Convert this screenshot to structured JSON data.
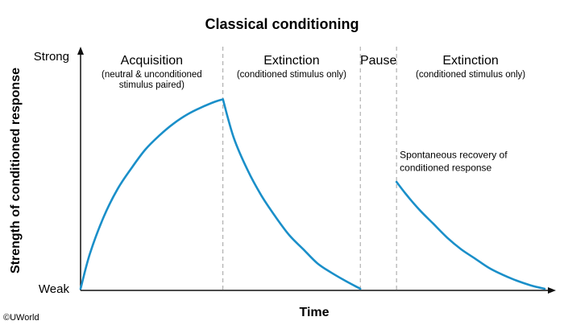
{
  "credit": "©UWorld",
  "chart_data": {
    "type": "line",
    "title": "Classical conditioning",
    "xlabel": "Time",
    "ylabel": "Strength of conditioned response",
    "y_ticks": [
      {
        "label": "Strong",
        "value": 1
      },
      {
        "label": "Weak",
        "value": 0
      }
    ],
    "xlim": [
      0,
      1
    ],
    "ylim": [
      0,
      1
    ],
    "grid": false,
    "line_color": "#1a8fc9",
    "divider_color": "#a0a0a0",
    "phases": [
      {
        "title": "Acquisition",
        "subtitle_lines": [
          "(neutral & unconditioned",
          "stimulus paired)"
        ],
        "x_start": 0.0,
        "x_end": 0.3067
      },
      {
        "title": "Extinction",
        "subtitle_lines": [
          "(conditioned stimulus only)"
        ],
        "x_start": 0.3067,
        "x_end": 0.6028
      },
      {
        "title": "Pause",
        "subtitle_lines": [],
        "x_start": 0.6028,
        "x_end": 0.6808
      },
      {
        "title": "Extinction",
        "subtitle_lines": [
          "(conditioned stimulus only)"
        ],
        "x_start": 0.6808,
        "x_end": 1.0
      }
    ],
    "annotations": [
      {
        "lines": [
          "Spontaneous recovery of",
          "conditioned response"
        ],
        "x": 0.6808,
        "y": 0.48
      }
    ],
    "series": [
      {
        "segments": [
          [
            [
              0,
              0
            ],
            [
              0.02,
              0.15
            ],
            [
              0.05,
              0.31
            ],
            [
              0.08,
              0.43
            ],
            [
              0.11,
              0.52
            ],
            [
              0.14,
              0.6
            ],
            [
              0.17,
              0.66
            ],
            [
              0.2,
              0.71
            ],
            [
              0.23,
              0.75
            ],
            [
              0.26,
              0.78
            ],
            [
              0.29,
              0.805
            ],
            [
              0.3067,
              0.815
            ]
          ],
          [
            [
              0.3067,
              0.815
            ],
            [
              0.33,
              0.65
            ],
            [
              0.36,
              0.51
            ],
            [
              0.39,
              0.4
            ],
            [
              0.42,
              0.31
            ],
            [
              0.45,
              0.23
            ],
            [
              0.48,
              0.17
            ],
            [
              0.51,
              0.11
            ],
            [
              0.54,
              0.07
            ],
            [
              0.57,
              0.035
            ],
            [
              0.6028,
              0
            ]
          ],
          [
            [
              0.6808,
              0.46
            ],
            [
              0.7,
              0.41
            ],
            [
              0.73,
              0.34
            ],
            [
              0.76,
              0.28
            ],
            [
              0.79,
              0.22
            ],
            [
              0.82,
              0.17
            ],
            [
              0.85,
              0.13
            ],
            [
              0.88,
              0.09
            ],
            [
              0.91,
              0.06
            ],
            [
              0.94,
              0.035
            ],
            [
              0.97,
              0.015
            ],
            [
              1.0,
              0
            ]
          ]
        ]
      }
    ]
  }
}
